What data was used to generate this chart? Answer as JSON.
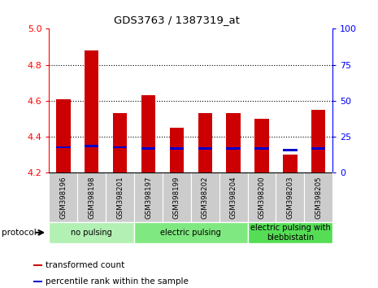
{
  "title": "GDS3763 / 1387319_at",
  "samples": [
    "GSM398196",
    "GSM398198",
    "GSM398201",
    "GSM398197",
    "GSM398199",
    "GSM398202",
    "GSM398204",
    "GSM398200",
    "GSM398203",
    "GSM398205"
  ],
  "transformed_count": [
    4.61,
    4.88,
    4.53,
    4.63,
    4.45,
    4.53,
    4.53,
    4.5,
    4.3,
    4.55
  ],
  "percentile_rank": [
    17,
    18,
    17,
    16,
    16,
    16,
    16,
    16,
    15,
    16
  ],
  "ylim_left": [
    4.2,
    5.0
  ],
  "ylim_right": [
    0,
    100
  ],
  "yticks_left": [
    4.2,
    4.4,
    4.6,
    4.8,
    5.0
  ],
  "yticks_right": [
    0,
    25,
    50,
    75,
    100
  ],
  "grid_lines": [
    4.4,
    4.6,
    4.8
  ],
  "bar_color_red": "#cc0000",
  "bar_color_blue": "#0000cc",
  "groups": [
    {
      "label": "no pulsing",
      "indices": [
        0,
        1,
        2
      ],
      "color": "#b3f0b3"
    },
    {
      "label": "electric pulsing",
      "indices": [
        3,
        4,
        5,
        6
      ],
      "color": "#80e880"
    },
    {
      "label": "electric pulsing with\nblebbistatin",
      "indices": [
        7,
        8,
        9
      ],
      "color": "#55dd55"
    }
  ],
  "legend_red_label": "transformed count",
  "legend_blue_label": "percentile rank within the sample",
  "protocol_label": "protocol",
  "bar_width": 0.5,
  "blue_bar_height": 0.012
}
